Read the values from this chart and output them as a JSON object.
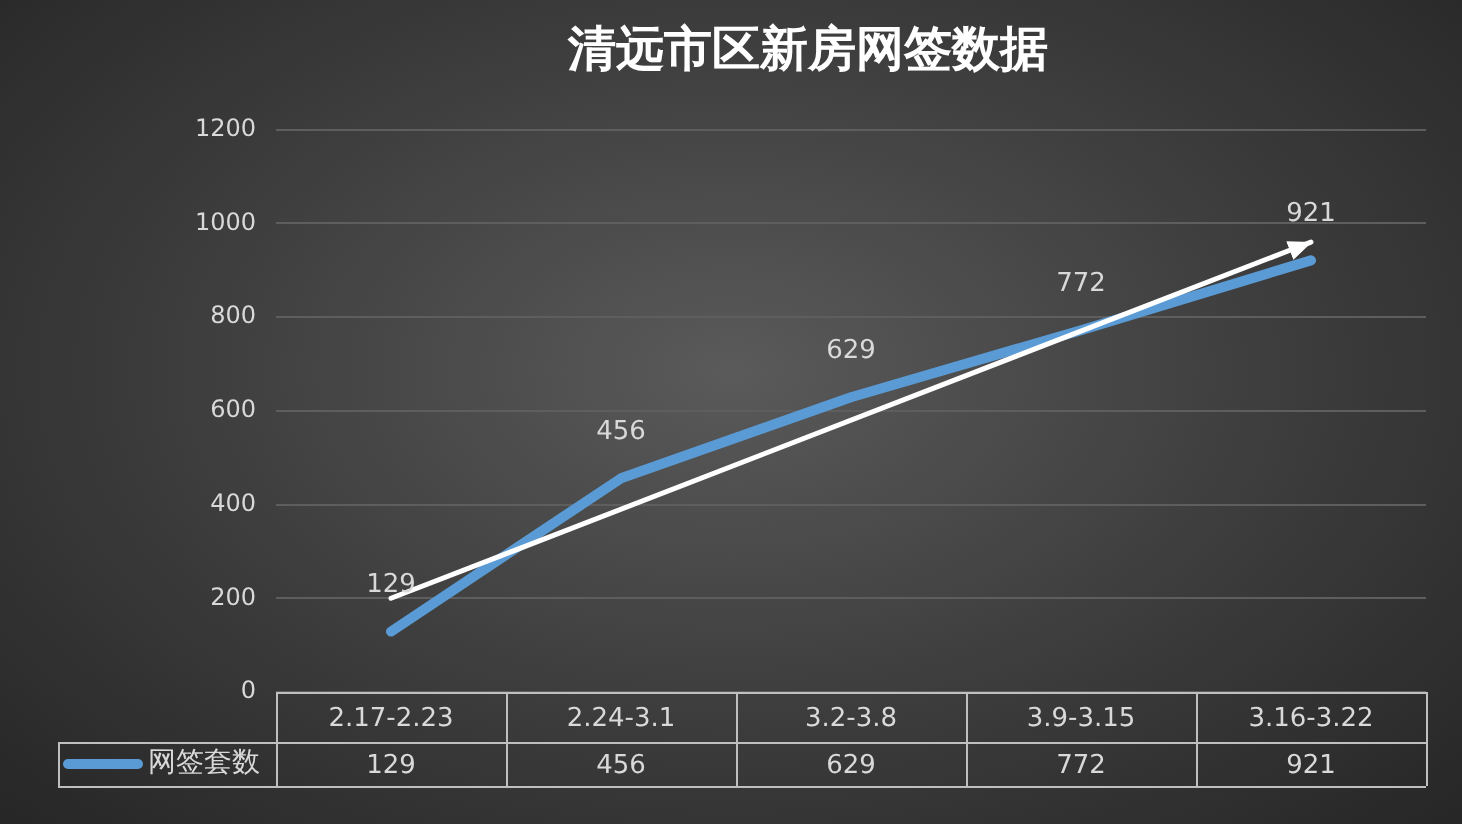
{
  "chart_data": {
    "type": "line",
    "title": "清远市区新房网签数据",
    "categories": [
      "2.17-2.23",
      "2.24-3.1",
      "3.2-3.8",
      "3.9-3.15",
      "3.16-3.22"
    ],
    "series": [
      {
        "name": "网签套数",
        "color": "#5b9bd5",
        "values": [
          129,
          456,
          629,
          772,
          921
        ],
        "value_labels": [
          "129",
          "456",
          "629",
          "772",
          "921"
        ]
      },
      {
        "type": "line",
        "x": [
          "2.17-2.23",
          "3.16-3.22"
        ],
        "color": "#ffffff",
        "values": [
          200,
          960
        ]
      }
    ],
    "ylim": [
      0,
      1200
    ],
    "yticks": [
      0,
      200,
      400,
      600,
      800,
      1000,
      1200
    ],
    "grid": "y",
    "legend": "bottom left",
    "marker": "none"
  }
}
